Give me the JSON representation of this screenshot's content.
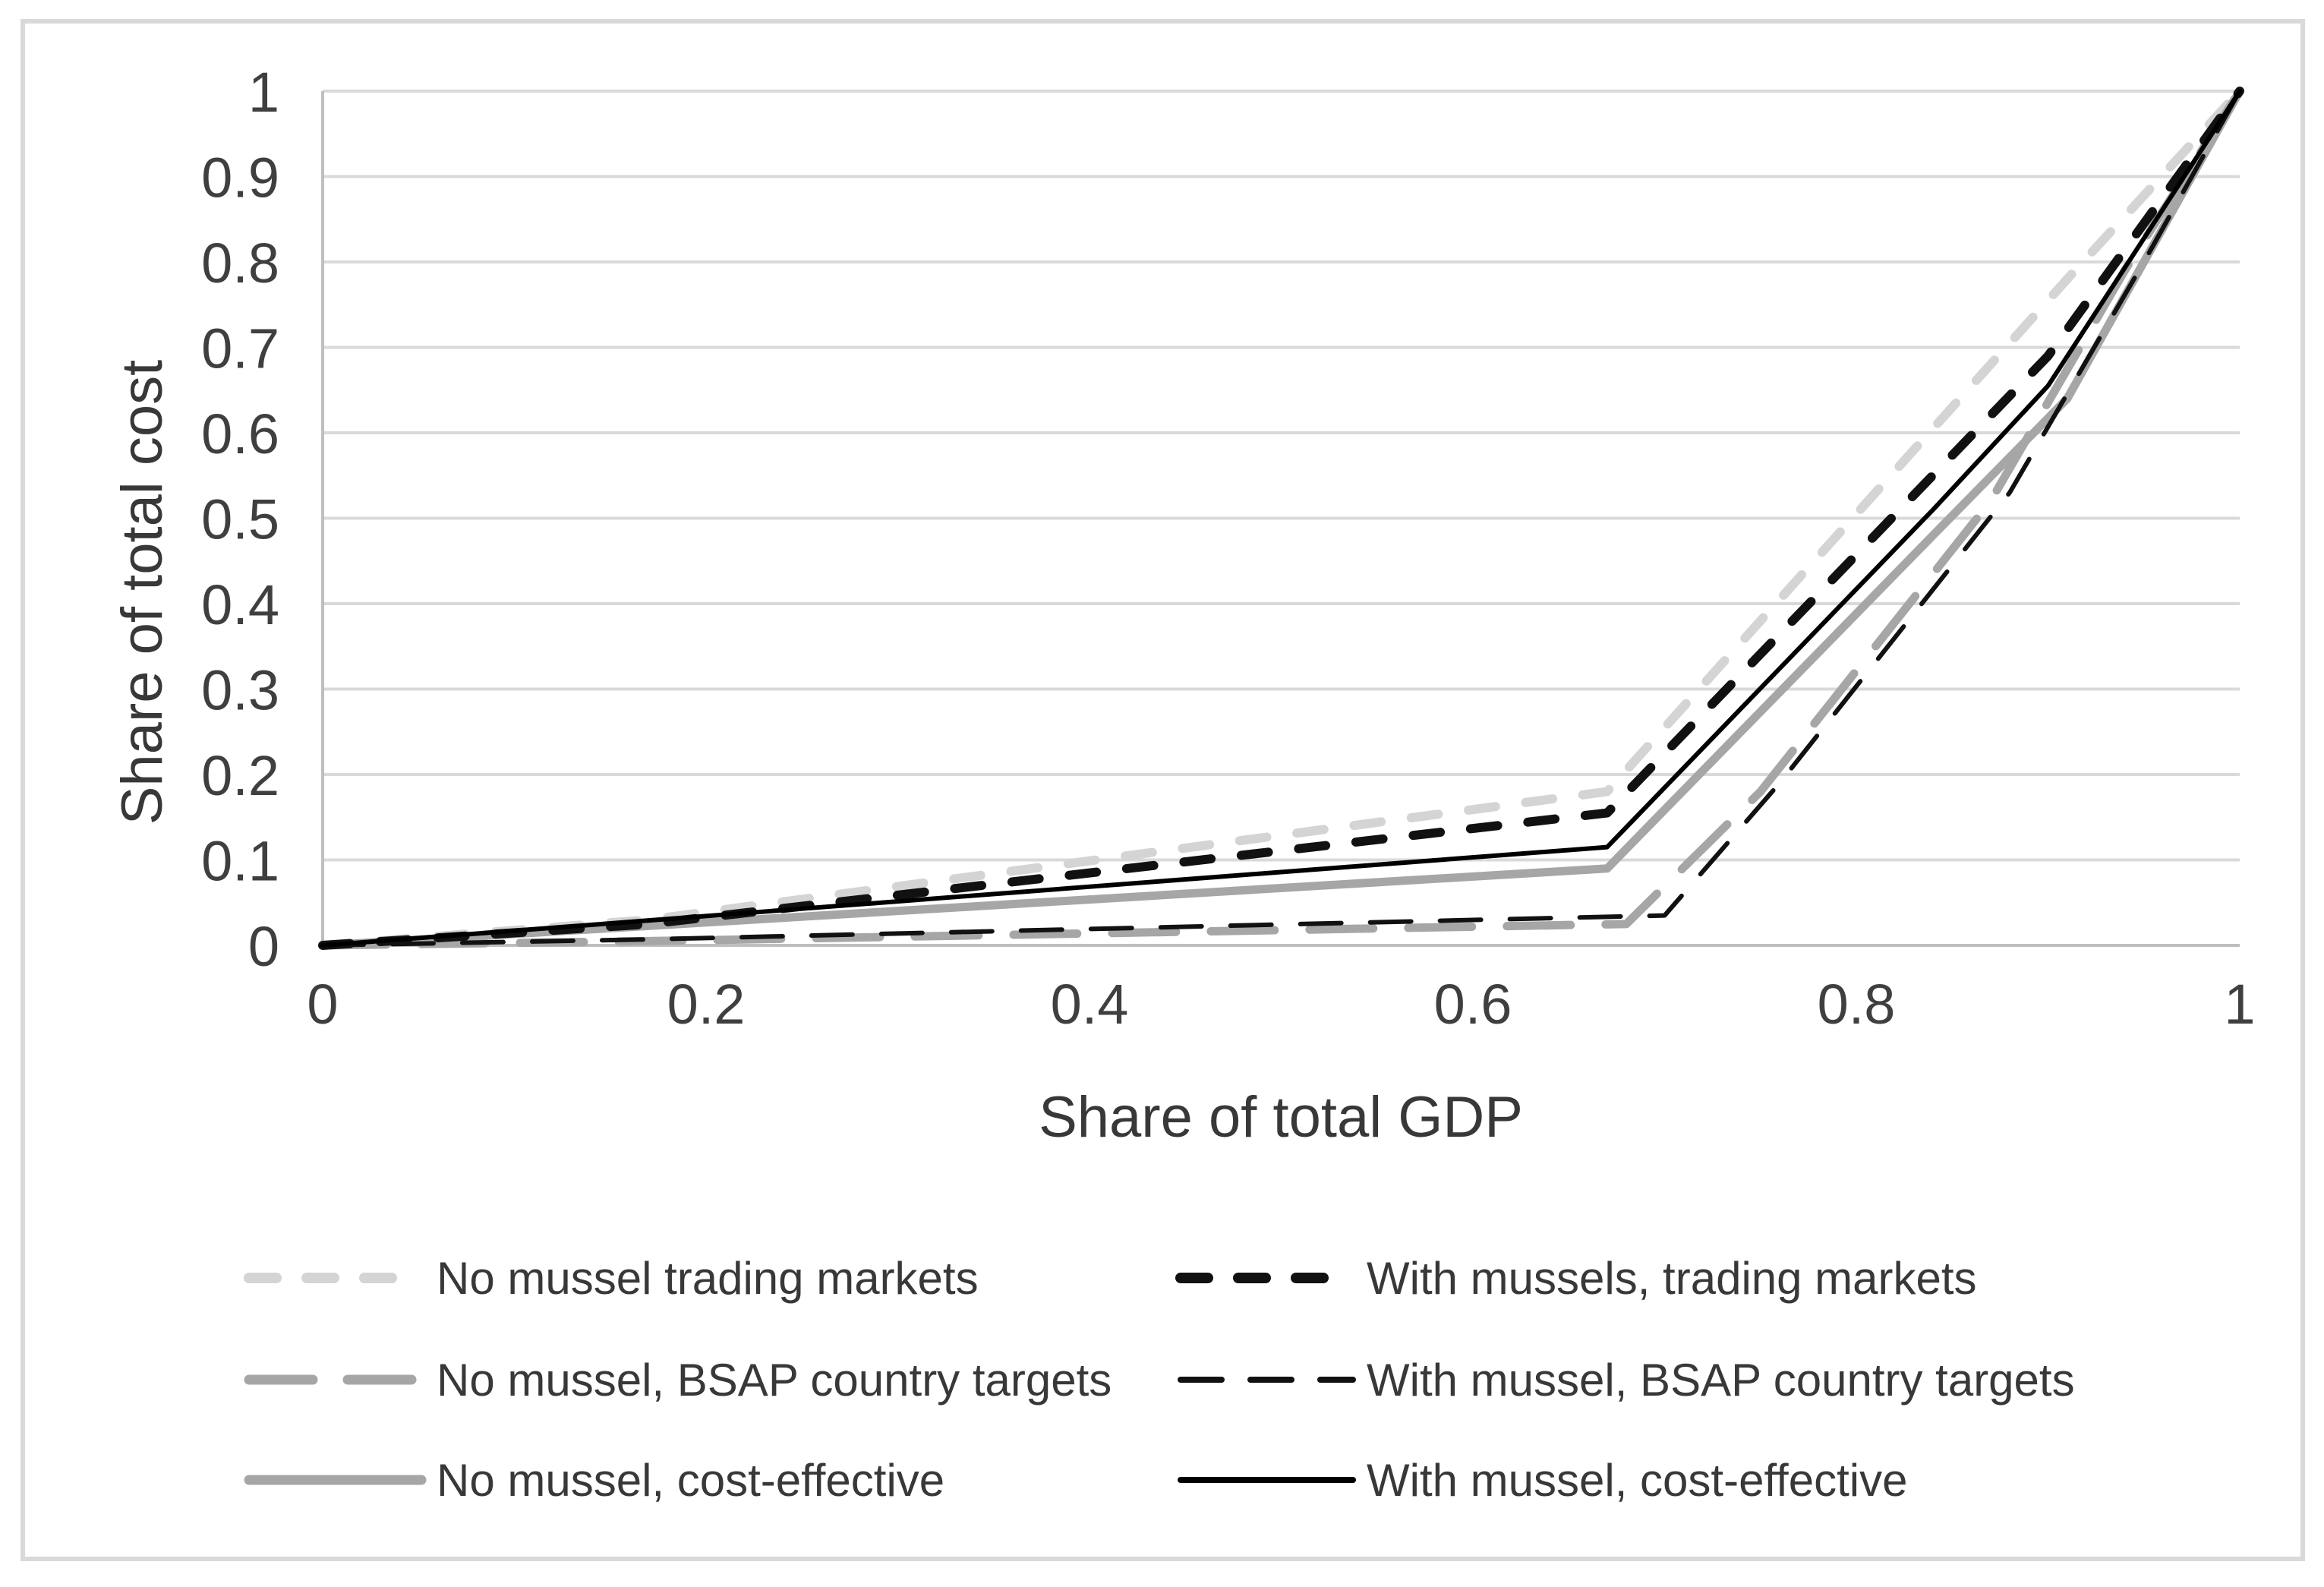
{
  "figure": {
    "background": "#ffffff",
    "border_color": "#d9d9d9"
  },
  "chart_data": {
    "type": "line",
    "title": "",
    "xlabel": "Share of total GDP",
    "ylabel": "Share of total cost",
    "xlim": [
      0,
      1
    ],
    "ylim": [
      0,
      1
    ],
    "grid": "horizontal",
    "legend_position": "bottom-two-columns",
    "style": {
      "gridline_color": "#d9d9d9",
      "axis_line_color": "#bfbfbf",
      "tick_label_color": "#3f3f3f"
    },
    "xticks": [
      0,
      0.2,
      0.4,
      0.6,
      0.8,
      1
    ],
    "xtick_labels": [
      "0",
      "0.2",
      "0.4",
      "0.6",
      "0.8",
      "1"
    ],
    "yticks": [
      0,
      0.1,
      0.2,
      0.3,
      0.4,
      0.5,
      0.6,
      0.7,
      0.8,
      0.9,
      1
    ],
    "ytick_labels": [
      "0",
      "0.1",
      "0.2",
      "0.3",
      "0.4",
      "0.5",
      "0.6",
      "0.7",
      "0.8",
      "0.9",
      "1"
    ],
    "series": [
      {
        "name": "No mussel trading markets",
        "color": "#d4d4d4",
        "style": "short-dash",
        "dasharray": "36 40",
        "width": 12,
        "points": [
          [
            0,
            0
          ],
          [
            0.17,
            0.03
          ],
          [
            0.67,
            0.18
          ],
          [
            0.91,
            0.78
          ],
          [
            1,
            1
          ]
        ]
      },
      {
        "name": "With mussels, trading markets",
        "color": "#111111",
        "style": "short-dash",
        "dasharray": "36 40",
        "width": 12,
        "points": [
          [
            0,
            0
          ],
          [
            0.17,
            0.025
          ],
          [
            0.67,
            0.155
          ],
          [
            0.9,
            0.69
          ],
          [
            1,
            1
          ]
        ]
      },
      {
        "name": "No mussel, BSAP country targets",
        "color": "#a6a6a6",
        "style": "long-dash",
        "dasharray": "84 46",
        "width": 11,
        "points": [
          [
            0,
            0
          ],
          [
            0.17,
            0.005
          ],
          [
            0.68,
            0.025
          ],
          [
            0.75,
            0.18
          ],
          [
            0.87,
            0.52
          ],
          [
            0.94,
            0.79
          ],
          [
            1,
            1
          ]
        ]
      },
      {
        "name": "With mussel, BSAP country targets",
        "color": "#111111",
        "style": "long-dash",
        "dasharray": "54 38",
        "width": 6,
        "points": [
          [
            0,
            0
          ],
          [
            0.17,
            0.007
          ],
          [
            0.7,
            0.035
          ],
          [
            0.76,
            0.19
          ],
          [
            0.88,
            0.53
          ],
          [
            0.95,
            0.8
          ],
          [
            1,
            1
          ]
        ]
      },
      {
        "name": "No mussel, cost-effective",
        "color": "#a6a6a6",
        "style": "solid",
        "dasharray": "",
        "width": 11,
        "points": [
          [
            0,
            0
          ],
          [
            0.67,
            0.09
          ],
          [
            0.84,
            0.48
          ],
          [
            0.91,
            0.64
          ],
          [
            1,
            1
          ]
        ]
      },
      {
        "name": "With mussel, cost-effective",
        "color": "#000000",
        "style": "solid",
        "dasharray": "",
        "width": 6,
        "points": [
          [
            0,
            0
          ],
          [
            0.67,
            0.115
          ],
          [
            0.84,
            0.51
          ],
          [
            0.9,
            0.655
          ],
          [
            1,
            1
          ]
        ]
      }
    ],
    "draw_order": [
      0,
      2,
      4,
      1,
      3,
      5
    ]
  }
}
